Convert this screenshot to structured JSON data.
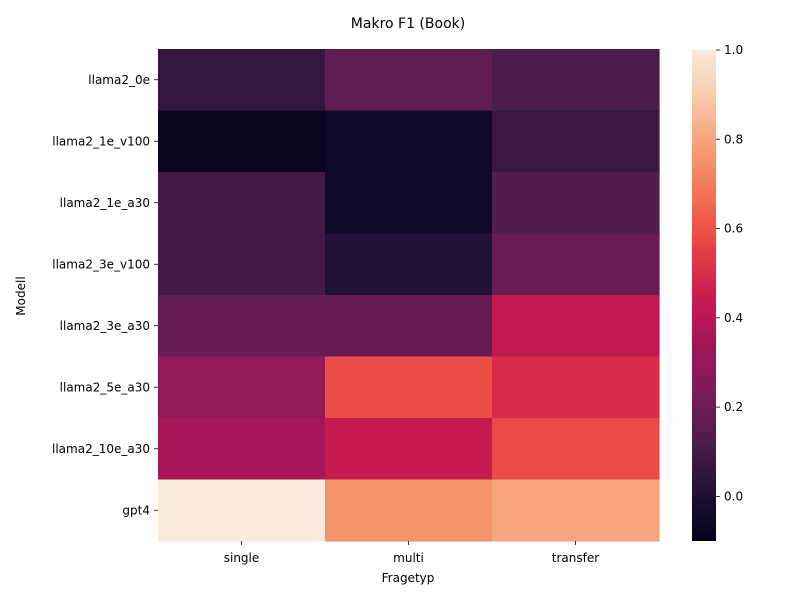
{
  "chart_data": {
    "type": "heatmap",
    "title": "Makro F1 (Book)",
    "xlabel": "Fragetyp",
    "ylabel": "Modell",
    "columns": [
      "single",
      "multi",
      "transfer"
    ],
    "rows": [
      "llama2_0e",
      "llama2_1e_v100",
      "llama2_1e_a30",
      "llama2_3e_v100",
      "llama2_3e_a30",
      "llama2_5e_a30",
      "llama2_10e_a30",
      "gpt4"
    ],
    "values": [
      [
        0.06,
        0.17,
        0.12
      ],
      [
        -0.08,
        -0.05,
        0.07
      ],
      [
        0.1,
        -0.05,
        0.13
      ],
      [
        0.1,
        0.01,
        0.19
      ],
      [
        0.18,
        0.18,
        0.43
      ],
      [
        0.3,
        0.59,
        0.5
      ],
      [
        0.35,
        0.44,
        0.58
      ],
      [
        1.0,
        0.76,
        0.8
      ]
    ],
    "colorbar": {
      "vmin": -0.1,
      "vmax": 1.0,
      "ticks": [
        "0.0",
        "0.2",
        "0.4",
        "0.6",
        "0.8",
        "1.0"
      ],
      "colormap": "rocket"
    }
  }
}
